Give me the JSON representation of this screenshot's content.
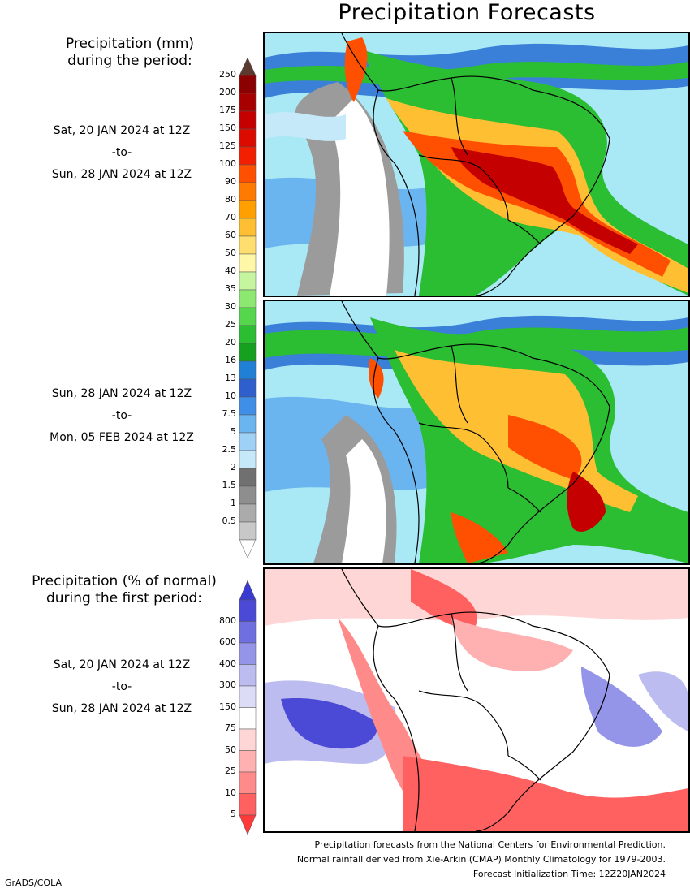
{
  "title": "Precipitation Forecasts",
  "legend_top": {
    "heading_line1": "Precipitation (mm)",
    "heading_line2": "during the period:",
    "levels": [
      "250",
      "200",
      "175",
      "150",
      "125",
      "100",
      "90",
      "80",
      "70",
      "60",
      "50",
      "40",
      "35",
      "30",
      "25",
      "20",
      "16",
      "13",
      "10",
      "7.5",
      "5",
      "2.5",
      "2",
      "1.5",
      "1",
      "0.5"
    ],
    "colors": [
      "#8b0000",
      "#a80000",
      "#c40000",
      "#dc0b00",
      "#f22000",
      "#ff4f00",
      "#ff7a00",
      "#ffa000",
      "#ffbf33",
      "#ffde70",
      "#fff7a8",
      "#c6f5a0",
      "#8de872",
      "#55d64c",
      "#2bbd32",
      "#16a020",
      "#1f80d6",
      "#2e5fcc",
      "#3f8fe8",
      "#6ab4f0",
      "#9fd0f5",
      "#c6e9fa",
      "#707070",
      "#8e8e8e",
      "#ababab",
      "#c8c8c8"
    ],
    "top_arrow_color": "#5c3a30"
  },
  "period1": {
    "start": "Sat, 20 JAN 2024 at 12Z",
    "sep": "-to-",
    "end": "Sun, 28 JAN 2024 at 12Z"
  },
  "period2": {
    "start": "Sun, 28 JAN 2024 at 12Z",
    "sep": "-to-",
    "end": "Mon, 05 FEB 2024 at 12Z"
  },
  "legend_bottom": {
    "heading_line1": "Precipitation (% of normal)",
    "heading_line2": "during the first period:",
    "levels": [
      "800",
      "600",
      "400",
      "300",
      "150",
      "75",
      "50",
      "25",
      "10",
      "5"
    ],
    "colors": [
      "#4a4ad6",
      "#6f6fe0",
      "#9494e8",
      "#bcbcf0",
      "#dcdcf7",
      "#ffffff",
      "#ffd6d6",
      "#ffb0b0",
      "#ff8a8a",
      "#ff6060"
    ],
    "top_arrow_color": "#3a3ad0",
    "bottom_arrow_color": "#ff3a3a"
  },
  "period3": {
    "start": "Sat, 20 JAN 2024 at 12Z",
    "sep": "-to-",
    "end": "Sun, 28 JAN 2024 at 12Z"
  },
  "footer": {
    "line1": "Precipitation forecasts from the National Centers for Environmental Prediction.",
    "line2": "Normal rainfall derived from Xie-Arkin (CMAP) Monthly Climatology for 1979-2003.",
    "line3": "Forecast Initialization Time: 12Z20JAN2024"
  },
  "credit": "GrADS/COLA"
}
